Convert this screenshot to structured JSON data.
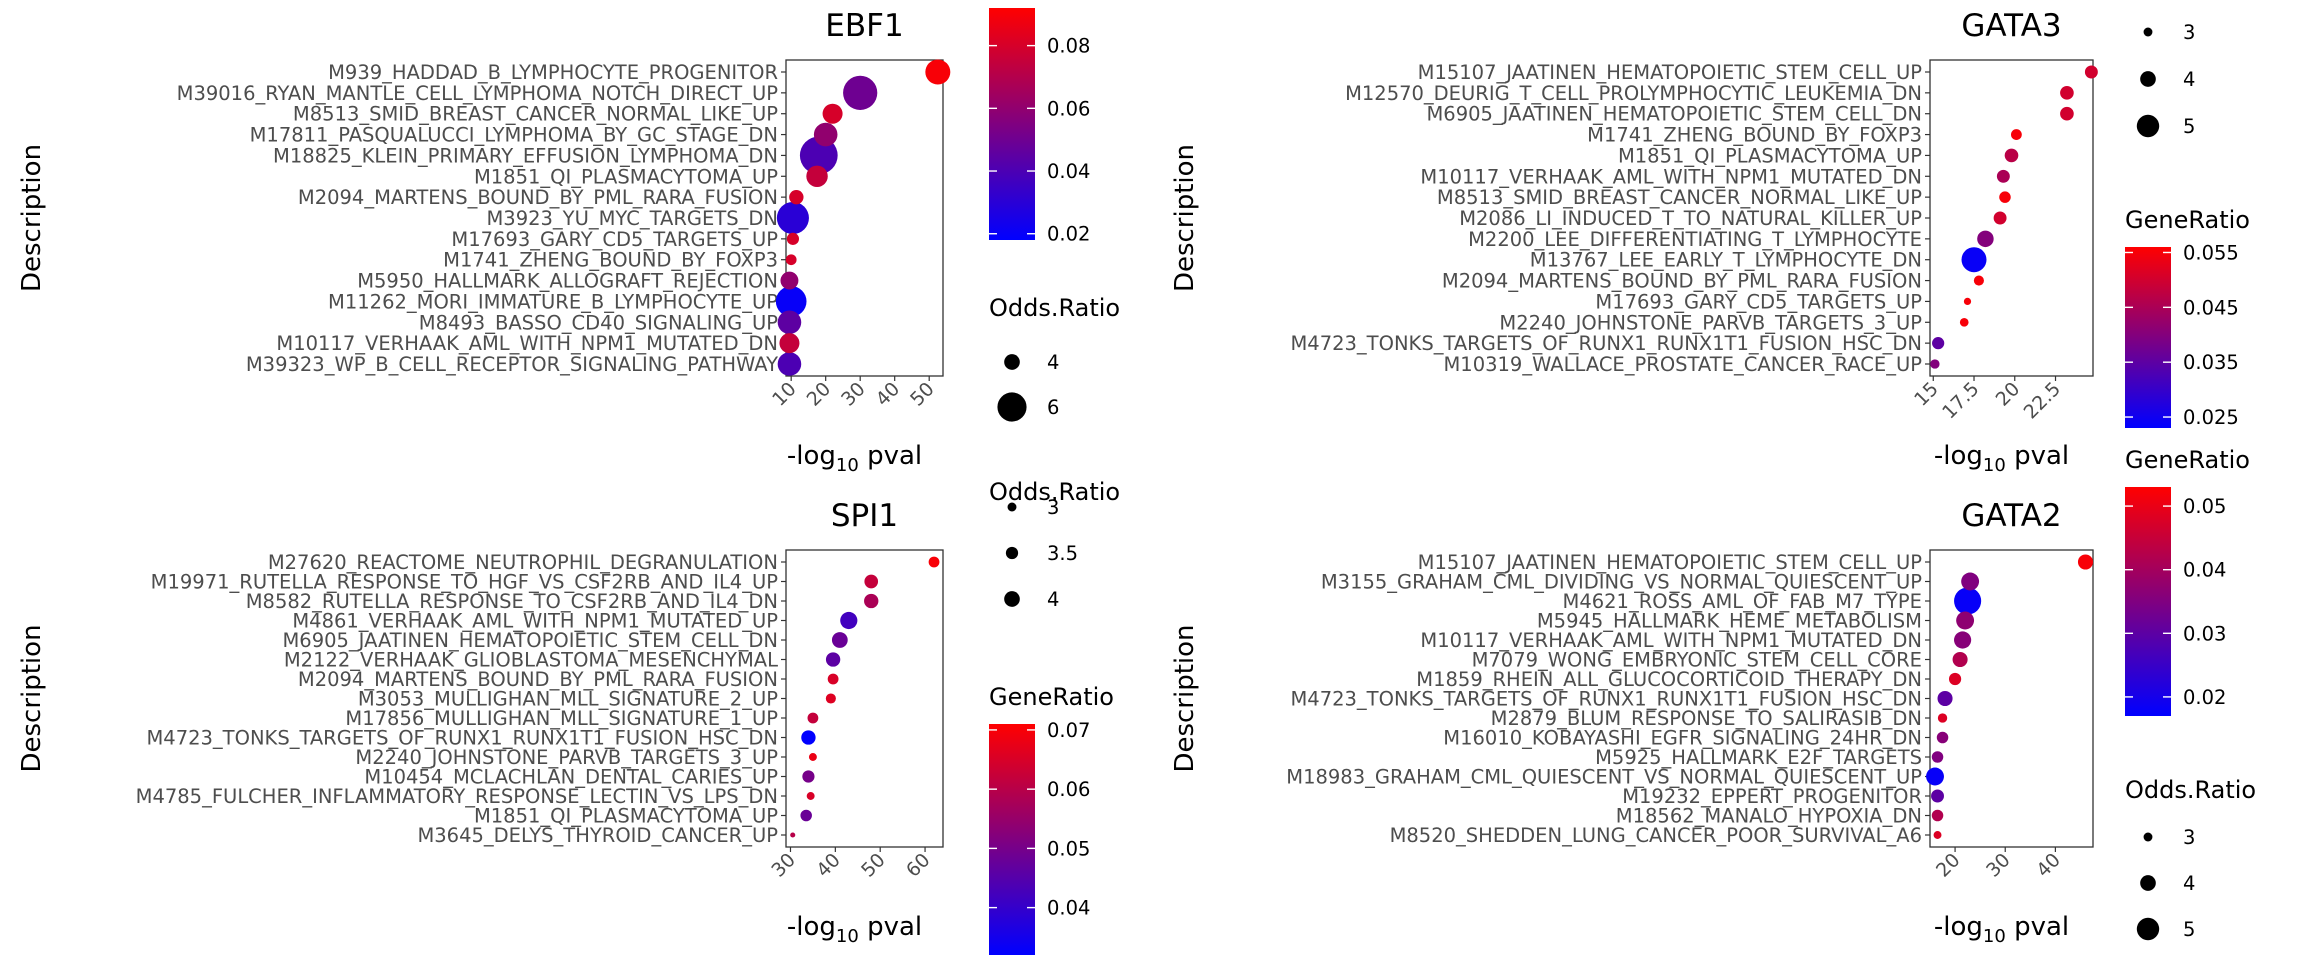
{
  "chart_data": [
    {
      "type": "scatter",
      "title": "EBF1",
      "ylabel": "Description",
      "xlabel": "-log10 pval",
      "xticks": [
        10,
        20,
        30,
        40,
        50
      ],
      "xlim": [
        8.5,
        54
      ],
      "descriptions": [
        "M939_HADDAD_B_LYMPHOCYTE_PROGENITOR",
        "M39016_RYAN_MANTLE_CELL_LYMPHOMA_NOTCH_DIRECT_UP",
        "M8513_SMID_BREAST_CANCER_NORMAL_LIKE_UP",
        "M17811_PASQUALUCCI_LYMPHOMA_BY_GC_STAGE_DN",
        "M18825_KLEIN_PRIMARY_EFFUSION_LYMPHOMA_DN",
        "M1851_QI_PLASMACYTOMA_UP",
        "M2094_MARTENS_BOUND_BY_PML_RARA_FUSION",
        "M3923_YU_MYC_TARGETS_DN",
        "M17693_GARY_CD5_TARGETS_UP",
        "M1741_ZHENG_BOUND_BY_FOXP3",
        "M5950_HALLMARK_ALLOGRAFT_REJECTION",
        "M11262_MORI_IMMATURE_B_LYMPHOCYTE_UP",
        "M8493_BASSO_CD40_SIGNALING_UP",
        "M10117_VERHAAK_AML_WITH_NPM1_MUTATED_DN",
        "M39323_WP_B_CELL_RECEPTOR_SIGNALING_PATHWAY"
      ],
      "x": [
        52.5,
        30,
        22,
        20,
        18,
        17.5,
        11.5,
        10.5,
        10.5,
        10,
        9.5,
        10,
        9.5,
        9.5,
        9.5
      ],
      "gene_ratio": [
        0.09,
        0.05,
        0.08,
        0.06,
        0.04,
        0.075,
        0.08,
        0.03,
        0.08,
        0.08,
        0.06,
        0.02,
        0.045,
        0.075,
        0.04
      ],
      "odds_ratio": [
        5.2,
        6.5,
        4.5,
        5,
        7,
        4.7,
        3.7,
        6.2,
        3.4,
        3.2,
        4.2,
        6,
        5,
        4.5,
        5
      ],
      "colorbar": {
        "title": "",
        "ticks": [
          0.08,
          0.06,
          0.04,
          0.02
        ],
        "range": [
          0.018,
          0.092
        ]
      },
      "size_legend": {
        "title": "Odds.Ratio",
        "values": [
          4,
          6
        ]
      }
    },
    {
      "type": "scatter",
      "title": "GATA3",
      "ylabel": "Description",
      "xlabel": "-log10 pval",
      "xticks": [
        15.0,
        17.5,
        20.0,
        22.5
      ],
      "xlim": [
        14.8,
        24.8
      ],
      "descriptions": [
        "M15107_JAATINEN_HEMATOPOIETIC_STEM_CELL_UP",
        "M12570_DEURIG_T_CELL_PROLYMPHOCYTIC_LEUKEMIA_DN",
        "M6905_JAATINEN_HEMATOPOIETIC_STEM_CELL_DN",
        "M1741_ZHENG_BOUND_BY_FOXP3",
        "M1851_QI_PLASMACYTOMA_UP",
        "M10117_VERHAAK_AML_WITH_NPM1_MUTATED_DN",
        "M8513_SMID_BREAST_CANCER_NORMAL_LIKE_UP",
        "M2086_LI_INDUCED_T_TO_NATURAL_KILLER_UP",
        "M2200_LEE_DIFFERENTIATING_T_LYMPHOCYTE",
        "M13767_LEE_EARLY_T_LYMPHOCYTE_DN",
        "M2094_MARTENS_BOUND_BY_PML_RARA_FUSION",
        "M17693_GARY_CD5_TARGETS_UP",
        "M2240_JOHNSTONE_PARVB_TARGETS_3_UP",
        "M4723_TONKS_TARGETS_OF_RUNX1_RUNX1T1_FUSION_HSC_DN",
        "M10319_WALLACE_PROSTATE_CANCER_RACE_UP"
      ],
      "x": [
        24.7,
        23.2,
        23.2,
        20.1,
        19.8,
        19.3,
        19.4,
        19.1,
        18.2,
        17.5,
        17.8,
        17.1,
        16.9,
        15.3,
        15.1
      ],
      "gene_ratio": [
        0.05,
        0.05,
        0.05,
        0.055,
        0.047,
        0.045,
        0.055,
        0.05,
        0.04,
        0.024,
        0.055,
        0.055,
        0.055,
        0.035,
        0.04
      ],
      "odds_ratio": [
        3.5,
        3.6,
        3.6,
        3.2,
        3.6,
        3.5,
        3.3,
        3.5,
        4,
        5.2,
        3.1,
        2.7,
        2.9,
        3.4,
        3
      ],
      "colorbar": {
        "title": "GeneRatio",
        "ticks": [
          0.055,
          0.045,
          0.035,
          0.025
        ],
        "range": [
          0.023,
          0.056
        ]
      },
      "size_legend": {
        "title": "",
        "values": [
          3,
          4,
          5
        ]
      }
    },
    {
      "type": "scatter",
      "title": "SPI1",
      "ylabel": "Description",
      "xlabel": "-log10 pval",
      "xticks": [
        30,
        40,
        50,
        60
      ],
      "xlim": [
        29,
        64
      ],
      "descriptions": [
        "M27620_REACTOME_NEUTROPHIL_DEGRANULATION",
        "M19971_RUTELLA_RESPONSE_TO_HGF_VS_CSF2RB_AND_IL4_UP",
        "M8582_RUTELLA_RESPONSE_TO_CSF2RB_AND_IL4_DN",
        "M4861_VERHAAK_AML_WITH_NPM1_MUTATED_UP",
        "M6905_JAATINEN_HEMATOPOIETIC_STEM_CELL_DN",
        "M2122_VERHAAK_GLIOBLASTOMA_MESENCHYMAL",
        "M2094_MARTENS_BOUND_BY_PML_RARA_FUSION",
        "M3053_MULLIGHAN_MLL_SIGNATURE_2_UP",
        "M17856_MULLIGHAN_MLL_SIGNATURE_1_UP",
        "M4723_TONKS_TARGETS_OF_RUNX1_RUNX1T1_FUSION_HSC_DN",
        "M2240_JOHNSTONE_PARVB_TARGETS_3_UP",
        "M10454_MCLACHLAN_DENTAL_CARIES_UP",
        "M4785_FULCHER_INFLAMMATORY_RESPONSE_LECTIN_VS_LPS_DN",
        "M1851_QI_PLASMACYTOMA_UP",
        "M3645_DELYS_THYROID_CANCER_UP"
      ],
      "x": [
        62,
        48,
        48,
        43,
        41,
        39.5,
        39.5,
        39,
        35,
        34,
        35,
        34,
        34.5,
        33.5,
        30.5
      ],
      "gene_ratio": [
        0.07,
        0.062,
        0.058,
        0.042,
        0.048,
        0.046,
        0.065,
        0.066,
        0.062,
        0.032,
        0.068,
        0.05,
        0.065,
        0.048,
        0.06
      ],
      "odds_ratio": [
        3.2,
        3.6,
        3.7,
        4.1,
        3.9,
        3.7,
        3.2,
        3.1,
        3.2,
        3.7,
        2.8,
        3.4,
        2.8,
        3.3,
        2.4
      ],
      "colorbar": {
        "title": "GeneRatio",
        "ticks": [
          0.07,
          0.06,
          0.05,
          0.04
        ],
        "range": [
          0.032,
          0.071
        ]
      },
      "size_legend": {
        "title": "Odds.Ratio",
        "values": [
          3.0,
          3.5,
          4.0
        ]
      }
    },
    {
      "type": "scatter",
      "title": "GATA2",
      "ylabel": "Description",
      "xlabel": "-log10 pval",
      "xticks": [
        20,
        30,
        40
      ],
      "xlim": [
        15,
        47.5
      ],
      "descriptions": [
        "M15107_JAATINEN_HEMATOPOIETIC_STEM_CELL_UP",
        "M3155_GRAHAM_CML_DIVIDING_VS_NORMAL_QUIESCENT_UP",
        "M4621_ROSS_AML_OF_FAB_M7_TYPE",
        "M5945_HALLMARK_HEME_METABOLISM",
        "M10117_VERHAAK_AML_WITH_NPM1_MUTATED_DN",
        "M7079_WONG_EMBRYONIC_STEM_CELL_CORE",
        "M1859_RHEIN_ALL_GLUCOCORTICOID_THERAPY_DN",
        "M4723_TONKS_TARGETS_OF_RUNX1_RUNX1T1_FUSION_HSC_DN",
        "M2879_BLUM_RESPONSE_TO_SALIRASIB_DN",
        "M16010_KOBAYASHI_EGFR_SIGNALING_24HR_DN",
        "M5925_HALLMARK_E2F_TARGETS",
        "M18983_GRAHAM_CML_QUIESCENT_VS_NORMAL_QUIESCENT_UP",
        "M19232_EPPERT_PROGENITOR",
        "M18562_MANALO_HYPOXIA_DN",
        "M8520_SHEDDEN_LUNG_CANCER_POOR_SURVIVAL_A6"
      ],
      "x": [
        46,
        23,
        22.5,
        22,
        21.5,
        21,
        20,
        18,
        17.5,
        17.5,
        16.5,
        16,
        16.5,
        16.5,
        16.5
      ],
      "gene_ratio": [
        0.052,
        0.035,
        0.018,
        0.037,
        0.036,
        0.042,
        0.048,
        0.03,
        0.048,
        0.036,
        0.035,
        0.018,
        0.03,
        0.042,
        0.048
      ],
      "odds_ratio": [
        3.8,
        4.2,
        5.5,
        4.2,
        4.1,
        3.8,
        3.4,
        3.8,
        3,
        3.3,
        3.3,
        4.2,
        3.5,
        3.3,
        2.8
      ],
      "colorbar": {
        "title": "GeneRatio",
        "ticks": [
          0.05,
          0.04,
          0.03,
          0.02
        ],
        "range": [
          0.017,
          0.053
        ]
      },
      "size_legend": {
        "title": "Odds.Ratio",
        "values": [
          3,
          4,
          5
        ]
      }
    }
  ]
}
